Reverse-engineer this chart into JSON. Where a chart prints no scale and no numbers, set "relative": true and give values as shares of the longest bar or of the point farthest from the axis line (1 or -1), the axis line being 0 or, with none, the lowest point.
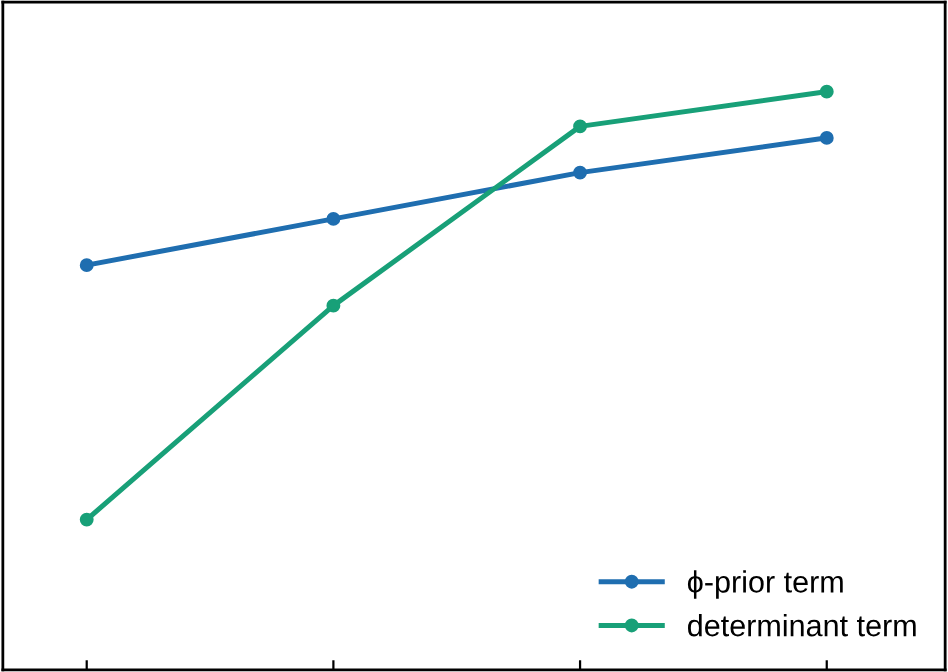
{
  "chart_data": {
    "type": "line",
    "relative": true,
    "categories": [
      null,
      null,
      null,
      null
    ],
    "series": [
      {
        "name": "ϕ-prior term",
        "color": "#1f6eb0",
        "values": [
          0.7,
          0.78,
          0.86,
          0.92
        ]
      },
      {
        "name": "determinant term",
        "color": "#18a078",
        "values": [
          0.26,
          0.63,
          0.94,
          1.0
        ]
      }
    ],
    "marker": "circle",
    "legend": "bottom right"
  }
}
